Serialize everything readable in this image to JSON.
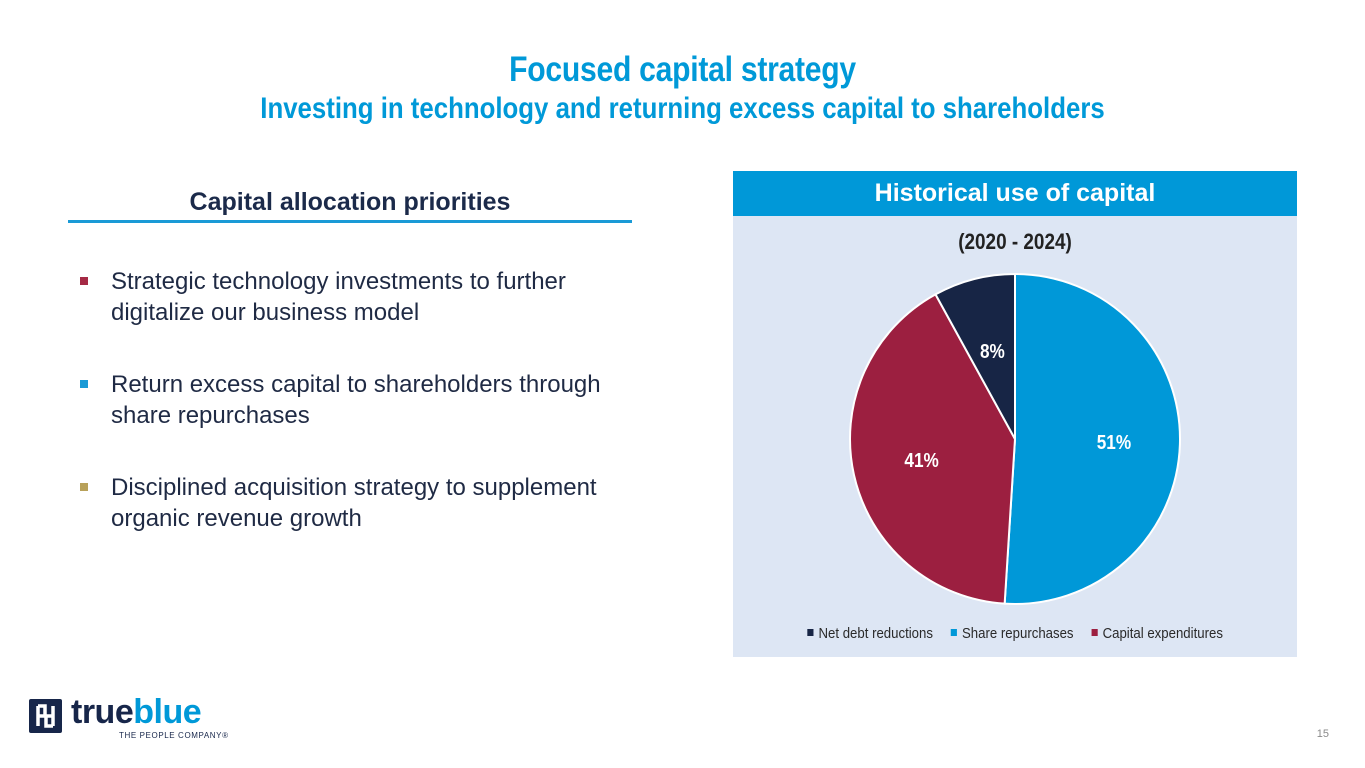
{
  "slide": {
    "title": "Focused capital strategy",
    "subtitle": "Investing in technology and returning excess capital to shareholders",
    "page_number": "15"
  },
  "left": {
    "heading": "Capital allocation priorities",
    "bullets": [
      {
        "text": "Strategic technology investments to further digitalize our business model",
        "color": "#a52a45"
      },
      {
        "text": "Return excess capital to shareholders through share repurchases",
        "color": "#1a9ad6"
      },
      {
        "text": "Disciplined acquisition strategy to supplement organic revenue growth",
        "color": "#b8a15a"
      }
    ]
  },
  "panel": {
    "header": "Historical use of capital"
  },
  "chart_data": {
    "type": "pie",
    "title": "Historical use of capital",
    "subtitle": "(2020 - 2024)",
    "series": [
      {
        "name": "Share repurchases",
        "value": 51,
        "label": "51%",
        "color": "#0098d8"
      },
      {
        "name": "Capital expenditures",
        "value": 41,
        "label": "41%",
        "color": "#9c1f40"
      },
      {
        "name": "Net debt reductions",
        "value": 8,
        "label": "8%",
        "color": "#172545"
      }
    ],
    "legend": [
      "Net debt reductions",
      "Share repurchases",
      "Capital expenditures"
    ],
    "legend_colors": [
      "#172545",
      "#0098d8",
      "#9c1f40"
    ],
    "legend_position": "bottom"
  },
  "logo": {
    "word_dark": "true",
    "word_blue": "blue",
    "tagline": "THE PEOPLE COMPANY®"
  }
}
